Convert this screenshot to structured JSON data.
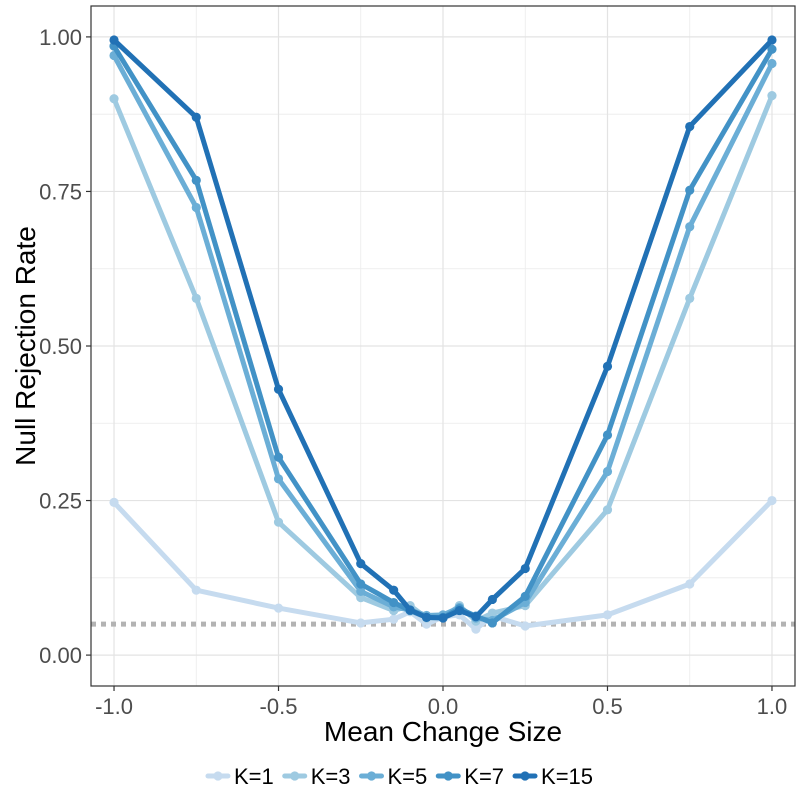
{
  "chart_data": {
    "type": "line",
    "title": "",
    "xlabel": "Mean Change Size",
    "ylabel": "Null Rejection Rate",
    "xlim": [
      -1.07,
      1.07
    ],
    "ylim": [
      -0.05,
      1.05
    ],
    "x_ticks": [
      -1.0,
      -0.5,
      0.0,
      0.5,
      1.0
    ],
    "x_tick_labels": [
      "-1.0",
      "-0.5",
      "0.0",
      "0.5",
      "1.0"
    ],
    "y_ticks": [
      0.0,
      0.25,
      0.5,
      0.75,
      1.0
    ],
    "y_tick_labels": [
      "0.00",
      "0.25",
      "0.50",
      "0.75",
      "1.00"
    ],
    "grid": true,
    "legend_position": "bottom",
    "reference_line": {
      "y": 0.05,
      "style": "dotted",
      "color": "#b3b3b3"
    },
    "x": [
      -1.0,
      -0.75,
      -0.5,
      -0.25,
      -0.15,
      -0.1,
      -0.05,
      0.0,
      0.05,
      0.1,
      0.15,
      0.25,
      0.5,
      0.75,
      1.0
    ],
    "series": [
      {
        "name": "K=1",
        "color": "#c6dbef",
        "values": [
          0.247,
          0.105,
          0.076,
          0.052,
          0.058,
          0.07,
          0.05,
          0.062,
          0.065,
          0.042,
          0.063,
          0.047,
          0.065,
          0.115,
          0.25
        ]
      },
      {
        "name": "K=3",
        "color": "#9ecae1",
        "values": [
          0.9,
          0.577,
          0.215,
          0.093,
          0.072,
          0.08,
          0.06,
          0.06,
          0.08,
          0.055,
          0.068,
          0.08,
          0.235,
          0.577,
          0.905
        ]
      },
      {
        "name": "K=5",
        "color": "#6baed6",
        "values": [
          0.97,
          0.724,
          0.285,
          0.103,
          0.078,
          0.073,
          0.064,
          0.065,
          0.077,
          0.06,
          0.056,
          0.085,
          0.297,
          0.693,
          0.957
        ]
      },
      {
        "name": "K=7",
        "color": "#4292c6",
        "values": [
          0.985,
          0.768,
          0.32,
          0.115,
          0.085,
          0.072,
          0.061,
          0.061,
          0.075,
          0.063,
          0.052,
          0.095,
          0.356,
          0.752,
          0.98
        ]
      },
      {
        "name": "K=15",
        "color": "#2171b5",
        "values": [
          0.995,
          0.87,
          0.43,
          0.148,
          0.105,
          0.073,
          0.061,
          0.06,
          0.072,
          0.062,
          0.09,
          0.14,
          0.467,
          0.855,
          0.995
        ]
      }
    ]
  }
}
